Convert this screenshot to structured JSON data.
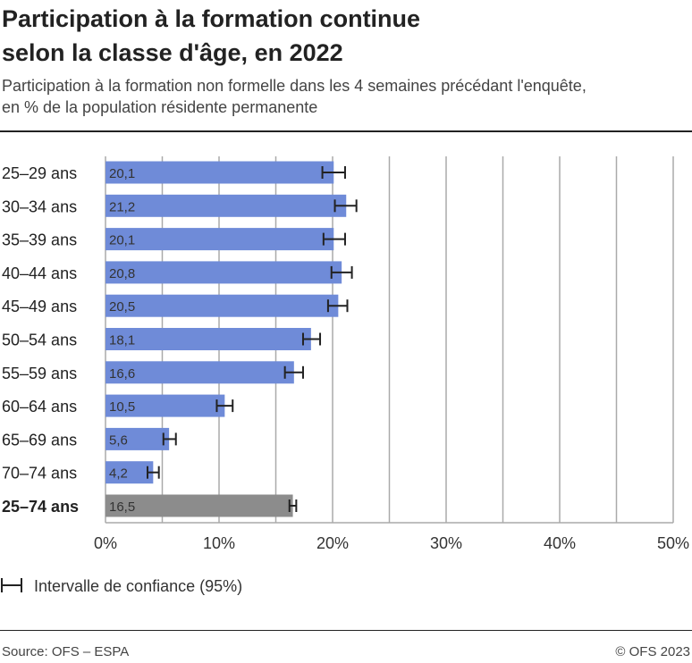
{
  "header": {
    "title_line1": "Participation à la formation continue",
    "title_line2": "selon la classe d'âge, en 2022",
    "subtitle_line1": "Participation à la formation non formelle dans les 4 semaines précédant l'enquête,",
    "subtitle_line2": "en % de la population résidente permanente"
  },
  "chart_data": {
    "type": "bar",
    "orientation": "horizontal",
    "categories": [
      "25–29 ans",
      "30–34 ans",
      "35–39 ans",
      "40–44 ans",
      "45–49 ans",
      "50–54 ans",
      "55–59 ans",
      "60–64 ans",
      "65–69 ans",
      "70–74 ans",
      "25–74 ans"
    ],
    "values": [
      20.1,
      21.2,
      20.1,
      20.8,
      20.5,
      18.1,
      16.6,
      10.5,
      5.6,
      4.2,
      16.5
    ],
    "data_labels": [
      "20,1",
      "21,2",
      "20,1",
      "20,8",
      "20,5",
      "18,1",
      "16,6",
      "10,5",
      "5,6",
      "4,2",
      "16,5"
    ],
    "ci_low": [
      19.1,
      20.2,
      19.2,
      19.9,
      19.6,
      17.4,
      15.8,
      9.8,
      5.1,
      3.7,
      16.2
    ],
    "ci_high": [
      21.1,
      22.1,
      21.1,
      21.7,
      21.3,
      18.9,
      17.4,
      11.2,
      6.2,
      4.7,
      16.8
    ],
    "bar_colors": [
      "#6f8bd8",
      "#6f8bd8",
      "#6f8bd8",
      "#6f8bd8",
      "#6f8bd8",
      "#6f8bd8",
      "#6f8bd8",
      "#6f8bd8",
      "#6f8bd8",
      "#6f8bd8",
      "#8c8c8c"
    ],
    "bold_categories": [
      "25–74 ans"
    ],
    "xlim": [
      0,
      50
    ],
    "xticks": [
      0,
      10,
      20,
      30,
      40,
      50
    ],
    "xtick_labels": [
      "0%",
      "10%",
      "20%",
      "30%",
      "40%",
      "50%"
    ],
    "grid": true,
    "legend": {
      "label": "Intervalle de confiance (95%)",
      "placement": "bottom-left"
    }
  },
  "footer": {
    "source": "Source: OFS – ESPA",
    "copyright": "© OFS 2023"
  }
}
